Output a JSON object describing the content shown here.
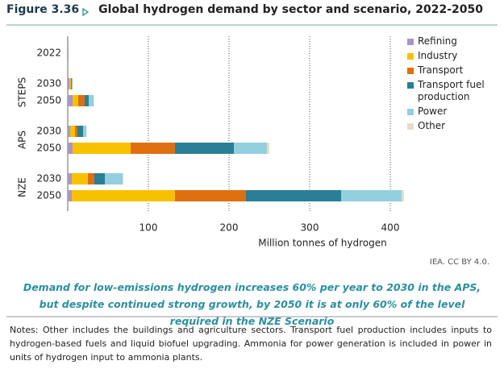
{
  "header": {
    "figure": "Figure 3.36",
    "title": "Global hydrogen demand by sector and scenario, 2022-2050"
  },
  "chart_data": {
    "type": "stacked-barh",
    "categories": [
      "2022",
      "2030",
      "2050",
      "2030",
      "2050",
      "2030",
      "2050"
    ],
    "category_groups": [
      null,
      "STEPS",
      "STEPS",
      "APS",
      "APS",
      "NZE",
      "NZE"
    ],
    "series": [
      {
        "name": "Refining",
        "color": "#a996c8",
        "values": [
          1,
          2,
          6,
          3,
          6,
          5,
          5
        ]
      },
      {
        "name": "Industry",
        "color": "#f8c100",
        "values": [
          0,
          2,
          7,
          6,
          72,
          20,
          128
        ]
      },
      {
        "name": "Transport",
        "color": "#e06f10",
        "values": [
          0,
          0.5,
          8,
          3,
          55,
          8,
          88
        ]
      },
      {
        "name": "Transport fuel production",
        "color": "#2a7f96",
        "values": [
          0,
          0.5,
          5,
          7,
          73,
          13,
          118
        ]
      },
      {
        "name": "Power",
        "color": "#93cfdf",
        "values": [
          0,
          1,
          6,
          4,
          41,
          22,
          75
        ]
      },
      {
        "name": "Other",
        "color": "#e5dcc8",
        "values": [
          0,
          0.5,
          0.5,
          0.5,
          3,
          1,
          3
        ]
      }
    ],
    "xlim": [
      0,
      420
    ],
    "xticks": [
      100,
      200,
      300,
      400
    ],
    "grid": true,
    "xlabel": "Million tonnes of hydrogen",
    "legend": "right"
  },
  "source": "IEA. CC BY 4.0.",
  "subtitle": "Demand for low-emissions hydrogen increases 60% per year to 2030 in the APS, but despite continued strong growth, by 2050 it is at only 60% of the level required in the NZE Scenario",
  "notes": "Notes: Other includes the buildings and agriculture sectors. Transport fuel production includes inputs to hydrogen-based fuels and liquid biofuel upgrading. Ammonia for power generation is included in power in units of hydrogen input to ammonia plants."
}
